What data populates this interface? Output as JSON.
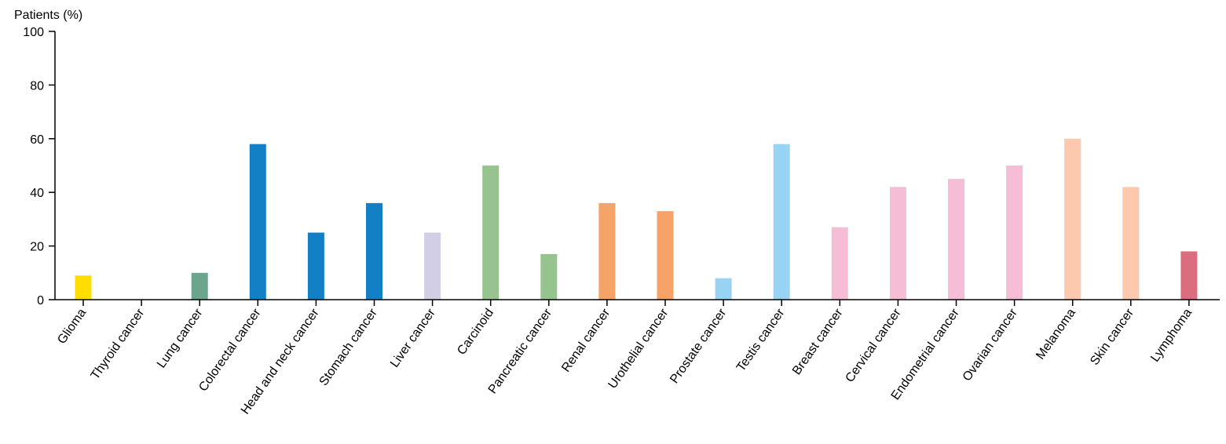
{
  "chart_data": {
    "type": "bar",
    "ylabel": "Patients (%)",
    "xlabel": "",
    "ylim": [
      0,
      100
    ],
    "yticks": [
      0,
      20,
      40,
      60,
      80,
      100
    ],
    "grid": false,
    "categories": [
      "Glioma",
      "Thyroid cancer",
      "Lung cancer",
      "Colorectal cancer",
      "Head and neck cancer",
      "Stomach cancer",
      "Liver cancer",
      "Carcinoid",
      "Pancreatic cancer",
      "Renal cancer",
      "Urothelial cancer",
      "Prostate cancer",
      "Testis cancer",
      "Breast cancer",
      "Cervical cancer",
      "Endometrial cancer",
      "Ovarian cancer",
      "Melanoma",
      "Skin cancer",
      "Lymphoma"
    ],
    "values": [
      9,
      0,
      10,
      58,
      25,
      36,
      25,
      50,
      17,
      36,
      33,
      8,
      58,
      27,
      42,
      45,
      50,
      60,
      42,
      18
    ],
    "colors": [
      "#FFDD00",
      "#6BA58E",
      "#6BA58E",
      "#1380C6",
      "#1380C6",
      "#1380C6",
      "#D1CEE6",
      "#96C38E",
      "#96C38E",
      "#F6A368",
      "#F6A368",
      "#98D3F4",
      "#98D3F4",
      "#F6BDD6",
      "#F6BDD6",
      "#F6BDD6",
      "#F6BDD6",
      "#FCC8AE",
      "#FCC8AE",
      "#DC6D7E"
    ]
  }
}
